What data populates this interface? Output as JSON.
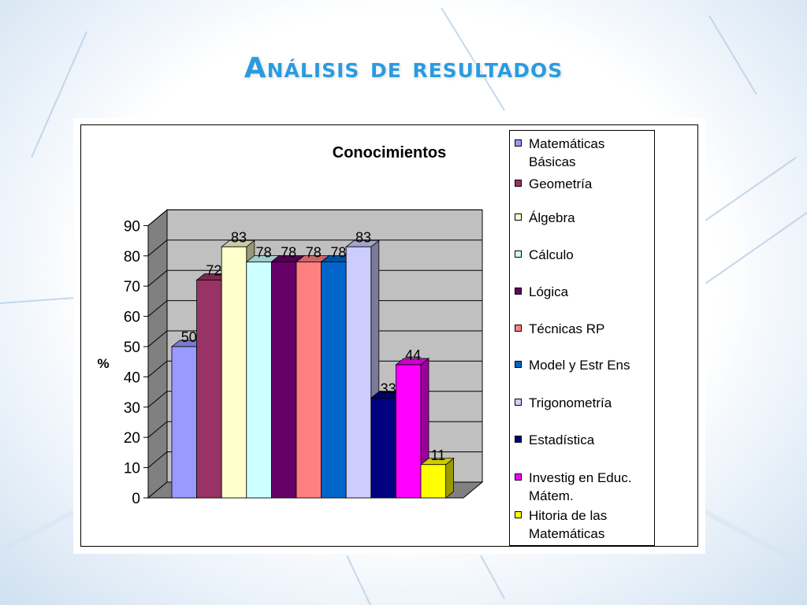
{
  "slide": {
    "title": "Análisis de resultados"
  },
  "colors": {
    "title": "#2a9be0",
    "plot_wall": "#c0c0c0",
    "floor": "#808080"
  },
  "chart_data": {
    "type": "bar",
    "title": "Conocimientos",
    "xlabel": "",
    "ylabel": "%",
    "ylim": [
      0,
      90
    ],
    "yticks": [
      0,
      10,
      20,
      30,
      40,
      50,
      60,
      70,
      80,
      90
    ],
    "grid": true,
    "legend_position": "right",
    "three_d": true,
    "series": [
      {
        "name": "Matemáticas Básicas",
        "value": 50,
        "color": "#9999ff"
      },
      {
        "name": "Geometría",
        "value": 72,
        "color": "#993366"
      },
      {
        "name": "Álgebra",
        "value": 83,
        "color": "#ffffcc"
      },
      {
        "name": "Cálculo",
        "value": 78,
        "color": "#ccffff"
      },
      {
        "name": "Lógica",
        "value": 78,
        "color": "#660066"
      },
      {
        "name": "Técnicas RP",
        "value": 78,
        "color": "#ff8080"
      },
      {
        "name": "Model y Estr Ens",
        "value": 78,
        "color": "#0066cc"
      },
      {
        "name": "Trigonometría",
        "value": 83,
        "color": "#ccccff"
      },
      {
        "name": "Estadística",
        "value": 33,
        "color": "#000080"
      },
      {
        "name": "Investig en Educ. Mátem.",
        "value": 44,
        "color": "#ff00ff"
      },
      {
        "name": "Hitoria de las Matemáticas",
        "value": 11,
        "color": "#ffff00"
      }
    ]
  }
}
